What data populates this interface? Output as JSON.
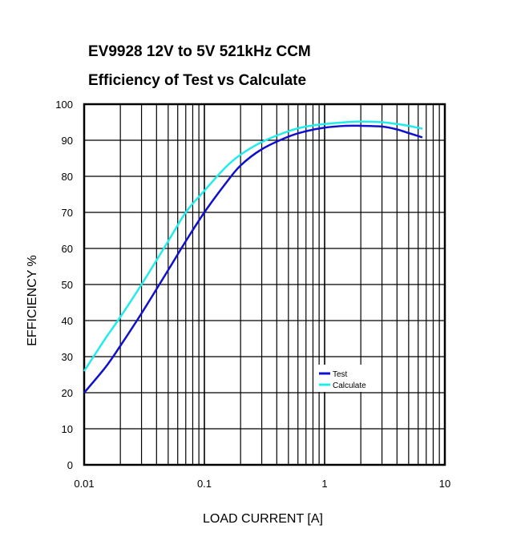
{
  "chart_data": {
    "type": "line",
    "title": "EV9928 12V to 5V 521kHz CCM",
    "subtitle": "Efficiency of Test vs Calculate",
    "xlabel": "LOAD CURRENT [A]",
    "ylabel": "EFFICIENCY %",
    "x_scale": "log",
    "xlim": [
      0.01,
      10
    ],
    "ylim": [
      0,
      100
    ],
    "grid": true,
    "legend_position": "lower-right",
    "x_ticks": [
      "0.01",
      "0.1",
      "1",
      "10"
    ],
    "y_ticks": [
      "0",
      "10",
      "20",
      "30",
      "40",
      "50",
      "60",
      "70",
      "80",
      "90",
      "100"
    ],
    "series": [
      {
        "name": "Test",
        "color": "#1010cc",
        "x": [
          0.01,
          0.015,
          0.02,
          0.03,
          0.05,
          0.07,
          0.1,
          0.15,
          0.2,
          0.3,
          0.5,
          0.7,
          1,
          1.5,
          2,
          3,
          4,
          5,
          6.5
        ],
        "y": [
          20,
          27,
          33,
          42,
          54,
          62,
          70,
          78,
          83,
          87.5,
          91,
          92.5,
          93.5,
          94,
          94,
          93.8,
          93,
          92,
          90.8
        ]
      },
      {
        "name": "Calculate",
        "color": "#20ecec",
        "x": [
          0.01,
          0.015,
          0.02,
          0.03,
          0.05,
          0.07,
          0.1,
          0.15,
          0.2,
          0.3,
          0.5,
          0.7,
          1,
          1.5,
          2,
          3,
          4,
          5,
          6.5
        ],
        "y": [
          26,
          35,
          41,
          50,
          62,
          70,
          76,
          82.5,
          86,
          89.5,
          92.5,
          93.8,
          94.5,
          95,
          95.2,
          95,
          94.5,
          94,
          93.2
        ]
      }
    ]
  }
}
